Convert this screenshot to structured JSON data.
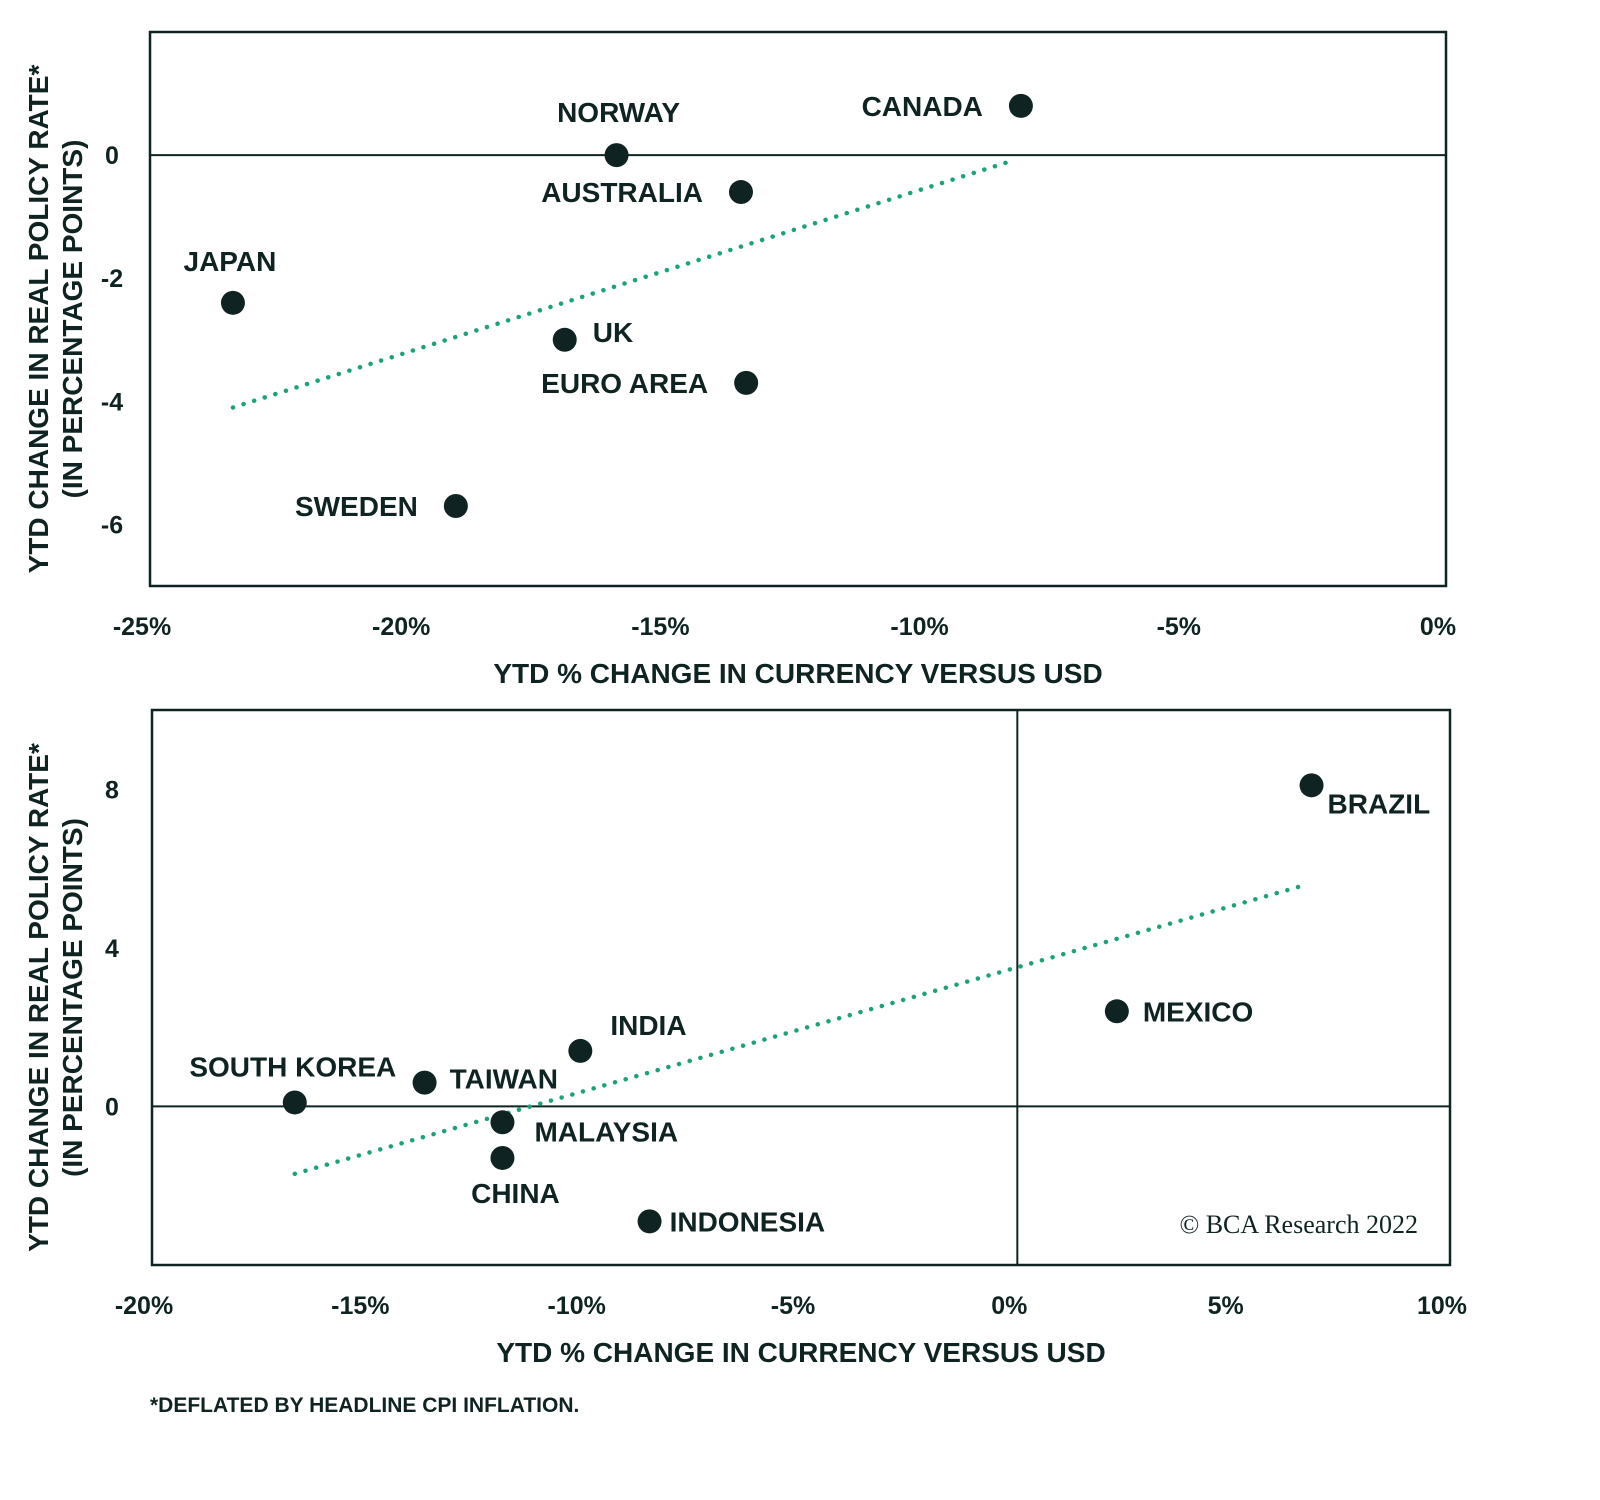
{
  "colors": {
    "points": "#0f2422",
    "trend": "#1aa37a",
    "frame": "#0f2422"
  },
  "chart_data": [
    {
      "type": "scatter",
      "xlabel": "YTD % CHANGE IN CURRENCY VERSUS USD",
      "ylabel": [
        "YTD CHANGE IN REAL POLICY RATE*",
        "(IN PERCENTAGE POINTS)"
      ],
      "xlim": [
        -25,
        0
      ],
      "ylim": [
        -7,
        2
      ],
      "x_ticks": [
        -25,
        -20,
        -15,
        -10,
        -5,
        0
      ],
      "x_tick_labels": [
        "-25%",
        "-20%",
        "-15%",
        "-10%",
        "-5%",
        "0%"
      ],
      "y_ticks": [
        0,
        -2,
        -4,
        -6
      ],
      "y_tick_labels": [
        "0",
        "-2",
        "-4",
        "-6"
      ],
      "reference_lines": {
        "y": 0
      },
      "grid": false,
      "points": [
        {
          "label": "CANADA",
          "x": -8.2,
          "y": 0.8
        },
        {
          "label": "NORWAY",
          "x": -16.0,
          "y": 0.0
        },
        {
          "label": "AUSTRALIA",
          "x": -13.6,
          "y": -0.6
        },
        {
          "label": "JAPAN",
          "x": -23.4,
          "y": -2.4
        },
        {
          "label": "UK",
          "x": -17.0,
          "y": -3.0
        },
        {
          "label": "EURO AREA",
          "x": -13.5,
          "y": -3.7
        },
        {
          "label": "SWEDEN",
          "x": -19.1,
          "y": -5.7
        }
      ],
      "trendline": {
        "x": [
          -23.4,
          -8.4
        ],
        "y": [
          -4.1,
          -0.1
        ],
        "style": "dotted"
      }
    },
    {
      "type": "scatter",
      "xlabel": "YTD % CHANGE IN CURRENCY VERSUS USD",
      "ylabel": [
        "YTD CHANGE IN REAL POLICY RATE*",
        "(IN PERCENTAGE POINTS)"
      ],
      "xlim": [
        -20,
        10
      ],
      "ylim": [
        -4,
        10
      ],
      "x_ticks": [
        -20,
        -15,
        -10,
        -5,
        0,
        5,
        10
      ],
      "x_tick_labels": [
        "-20%",
        "-15%",
        "-10%",
        "-5%",
        "0%",
        "5%",
        "10%"
      ],
      "y_ticks": [
        8,
        4,
        0
      ],
      "y_tick_labels": [
        "8",
        "4",
        "0"
      ],
      "reference_lines": {
        "x": 0,
        "y": 0
      },
      "grid": false,
      "points": [
        {
          "label": "BRAZIL",
          "x": 6.8,
          "y": 8.1
        },
        {
          "label": "MEXICO",
          "x": 2.3,
          "y": 2.4
        },
        {
          "label": "INDIA",
          "x": -10.1,
          "y": 1.4
        },
        {
          "label": "TAIWAN",
          "x": -13.7,
          "y": 0.6
        },
        {
          "label": "SOUTH KOREA",
          "x": -16.7,
          "y": 0.1
        },
        {
          "label": "MALAYSIA",
          "x": -11.9,
          "y": -0.4
        },
        {
          "label": "CHINA",
          "x": -11.9,
          "y": -1.3
        },
        {
          "label": "INDONESIA",
          "x": -8.5,
          "y": -2.9
        }
      ],
      "trendline": {
        "x": [
          -16.7,
          6.7
        ],
        "y": [
          -1.7,
          5.6
        ],
        "style": "dotted"
      },
      "annotation": "© BCA Research 2022"
    }
  ],
  "footnote": "*DEFLATED BY HEADLINE CPI INFLATION."
}
